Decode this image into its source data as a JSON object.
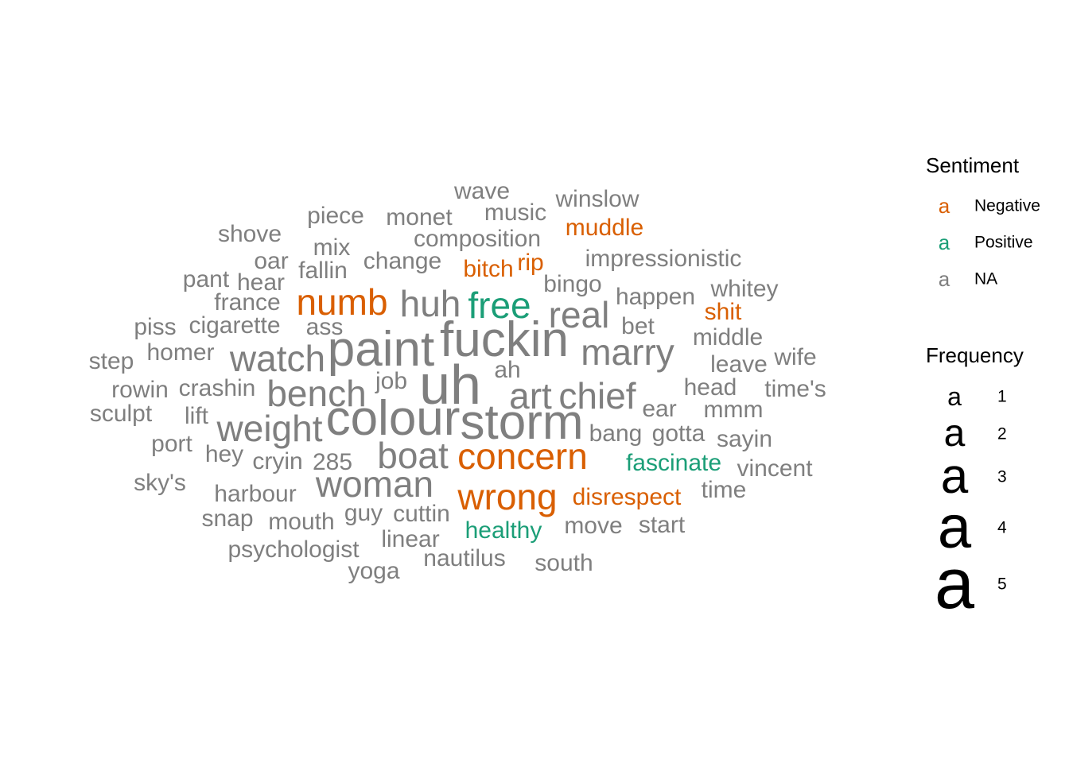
{
  "chart_data": {
    "type": "wordcloud",
    "legend": {
      "position": "right",
      "sentiment_title": "Sentiment",
      "sentiment_key_glyph": "a",
      "sentiment": [
        {
          "label": "Negative",
          "color": "#D95F02"
        },
        {
          "label": "Positive",
          "color": "#1B9E77"
        },
        {
          "label": "NA",
          "color": "#7F7F7F"
        }
      ],
      "frequency_title": "Frequency",
      "frequency_key_glyph": "a",
      "frequency_levels": [
        "1",
        "2",
        "3",
        "4",
        "5"
      ]
    },
    "words": [
      {
        "text": "uh",
        "freq": 5,
        "sentiment": "NA"
      },
      {
        "text": "fuckin",
        "freq": 4,
        "sentiment": "NA"
      },
      {
        "text": "paint",
        "freq": 4,
        "sentiment": "NA"
      },
      {
        "text": "colour",
        "freq": 4,
        "sentiment": "NA"
      },
      {
        "text": "storm",
        "freq": 4,
        "sentiment": "NA"
      },
      {
        "text": "numb",
        "freq": 3,
        "sentiment": "Negative"
      },
      {
        "text": "huh",
        "freq": 3,
        "sentiment": "NA"
      },
      {
        "text": "free",
        "freq": 3,
        "sentiment": "Positive"
      },
      {
        "text": "real",
        "freq": 3,
        "sentiment": "NA"
      },
      {
        "text": "marry",
        "freq": 3,
        "sentiment": "NA"
      },
      {
        "text": "watch",
        "freq": 3,
        "sentiment": "NA"
      },
      {
        "text": "bench",
        "freq": 3,
        "sentiment": "NA"
      },
      {
        "text": "art",
        "freq": 3,
        "sentiment": "NA"
      },
      {
        "text": "chief",
        "freq": 3,
        "sentiment": "NA"
      },
      {
        "text": "weight",
        "freq": 3,
        "sentiment": "NA"
      },
      {
        "text": "boat",
        "freq": 3,
        "sentiment": "NA"
      },
      {
        "text": "concern",
        "freq": 3,
        "sentiment": "Negative"
      },
      {
        "text": "woman",
        "freq": 3,
        "sentiment": "NA"
      },
      {
        "text": "wrong",
        "freq": 3,
        "sentiment": "Negative"
      },
      {
        "text": "wave",
        "freq": 1,
        "sentiment": "NA"
      },
      {
        "text": "winslow",
        "freq": 1,
        "sentiment": "NA"
      },
      {
        "text": "piece",
        "freq": 1,
        "sentiment": "NA"
      },
      {
        "text": "monet",
        "freq": 1,
        "sentiment": "NA"
      },
      {
        "text": "music",
        "freq": 1,
        "sentiment": "NA"
      },
      {
        "text": "shove",
        "freq": 1,
        "sentiment": "NA"
      },
      {
        "text": "muddle",
        "freq": 1,
        "sentiment": "Negative"
      },
      {
        "text": "composition",
        "freq": 1,
        "sentiment": "NA"
      },
      {
        "text": "mix",
        "freq": 1,
        "sentiment": "NA"
      },
      {
        "text": "oar",
        "freq": 1,
        "sentiment": "NA"
      },
      {
        "text": "change",
        "freq": 1,
        "sentiment": "NA"
      },
      {
        "text": "rip",
        "freq": 1,
        "sentiment": "Negative"
      },
      {
        "text": "impressionistic",
        "freq": 1,
        "sentiment": "NA"
      },
      {
        "text": "fallin",
        "freq": 1,
        "sentiment": "NA"
      },
      {
        "text": "bitch",
        "freq": 1,
        "sentiment": "Negative"
      },
      {
        "text": "pant",
        "freq": 1,
        "sentiment": "NA"
      },
      {
        "text": "hear",
        "freq": 1,
        "sentiment": "NA"
      },
      {
        "text": "bingo",
        "freq": 1,
        "sentiment": "NA"
      },
      {
        "text": "whitey",
        "freq": 1,
        "sentiment": "NA"
      },
      {
        "text": "happen",
        "freq": 1,
        "sentiment": "NA"
      },
      {
        "text": "france",
        "freq": 1,
        "sentiment": "NA"
      },
      {
        "text": "shit",
        "freq": 1,
        "sentiment": "Negative"
      },
      {
        "text": "piss",
        "freq": 1,
        "sentiment": "NA"
      },
      {
        "text": "cigarette",
        "freq": 1,
        "sentiment": "NA"
      },
      {
        "text": "ass",
        "freq": 1,
        "sentiment": "NA"
      },
      {
        "text": "bet",
        "freq": 1,
        "sentiment": "NA"
      },
      {
        "text": "middle",
        "freq": 1,
        "sentiment": "NA"
      },
      {
        "text": "homer",
        "freq": 1,
        "sentiment": "NA"
      },
      {
        "text": "step",
        "freq": 1,
        "sentiment": "NA"
      },
      {
        "text": "wife",
        "freq": 1,
        "sentiment": "NA"
      },
      {
        "text": "leave",
        "freq": 1,
        "sentiment": "NA"
      },
      {
        "text": "ah",
        "freq": 1,
        "sentiment": "NA"
      },
      {
        "text": "job",
        "freq": 1,
        "sentiment": "NA"
      },
      {
        "text": "rowin",
        "freq": 1,
        "sentiment": "NA"
      },
      {
        "text": "crashin",
        "freq": 1,
        "sentiment": "NA"
      },
      {
        "text": "head",
        "freq": 1,
        "sentiment": "NA"
      },
      {
        "text": "time's",
        "freq": 1,
        "sentiment": "NA"
      },
      {
        "text": "sculpt",
        "freq": 1,
        "sentiment": "NA"
      },
      {
        "text": "lift",
        "freq": 1,
        "sentiment": "NA"
      },
      {
        "text": "ear",
        "freq": 1,
        "sentiment": "NA"
      },
      {
        "text": "mmm",
        "freq": 1,
        "sentiment": "NA"
      },
      {
        "text": "bang",
        "freq": 1,
        "sentiment": "NA"
      },
      {
        "text": "gotta",
        "freq": 1,
        "sentiment": "NA"
      },
      {
        "text": "port",
        "freq": 1,
        "sentiment": "NA"
      },
      {
        "text": "sayin",
        "freq": 1,
        "sentiment": "NA"
      },
      {
        "text": "hey",
        "freq": 1,
        "sentiment": "NA"
      },
      {
        "text": "cryin",
        "freq": 1,
        "sentiment": "NA"
      },
      {
        "text": "285",
        "freq": 1,
        "sentiment": "NA"
      },
      {
        "text": "fascinate",
        "freq": 1,
        "sentiment": "Positive"
      },
      {
        "text": "vincent",
        "freq": 1,
        "sentiment": "NA"
      },
      {
        "text": "sky's",
        "freq": 1,
        "sentiment": "NA"
      },
      {
        "text": "harbour",
        "freq": 1,
        "sentiment": "NA"
      },
      {
        "text": "disrespect",
        "freq": 1,
        "sentiment": "Negative"
      },
      {
        "text": "time",
        "freq": 1,
        "sentiment": "NA"
      },
      {
        "text": "snap",
        "freq": 1,
        "sentiment": "NA"
      },
      {
        "text": "mouth",
        "freq": 1,
        "sentiment": "NA"
      },
      {
        "text": "guy",
        "freq": 1,
        "sentiment": "NA"
      },
      {
        "text": "cuttin",
        "freq": 1,
        "sentiment": "NA"
      },
      {
        "text": "healthy",
        "freq": 1,
        "sentiment": "Positive"
      },
      {
        "text": "move",
        "freq": 1,
        "sentiment": "NA"
      },
      {
        "text": "start",
        "freq": 1,
        "sentiment": "NA"
      },
      {
        "text": "psychologist",
        "freq": 1,
        "sentiment": "NA"
      },
      {
        "text": "linear",
        "freq": 1,
        "sentiment": "NA"
      },
      {
        "text": "nautilus",
        "freq": 1,
        "sentiment": "NA"
      },
      {
        "text": "south",
        "freq": 1,
        "sentiment": "NA"
      },
      {
        "text": "yoga",
        "freq": 1,
        "sentiment": "NA"
      }
    ]
  }
}
